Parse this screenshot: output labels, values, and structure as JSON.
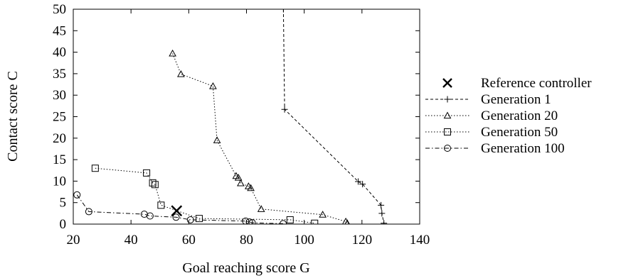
{
  "chart_data": {
    "type": "line",
    "title": "",
    "xlabel": "Goal reaching score G",
    "ylabel": "Contact score C",
    "xlim": [
      20,
      140
    ],
    "ylim": [
      0,
      50
    ],
    "xticks": [
      20,
      40,
      60,
      80,
      100,
      120,
      140
    ],
    "yticks": [
      0,
      5,
      10,
      15,
      20,
      25,
      30,
      35,
      40,
      45,
      50
    ],
    "grid": false,
    "legend_position": "right",
    "reference": {
      "name": "Reference controller",
      "marker": "x",
      "x": 55.8,
      "y": 3.1
    },
    "series": [
      {
        "name": "Generation 1",
        "marker": "plus",
        "dash": "dashed",
        "points": [
          [
            92.8,
            50.0
          ],
          [
            93.2,
            26.7
          ],
          [
            118.7,
            9.9
          ],
          [
            120.2,
            9.3
          ],
          [
            126.6,
            4.4
          ],
          [
            126.9,
            2.5
          ],
          [
            127.6,
            0.2
          ]
        ]
      },
      {
        "name": "Generation 20",
        "marker": "triangle",
        "dash": "dotted",
        "points": [
          [
            54.4,
            39.7
          ],
          [
            57.3,
            34.9
          ],
          [
            68.4,
            32.1
          ],
          [
            69.8,
            19.5
          ],
          [
            76.4,
            11.2
          ],
          [
            77.2,
            10.8
          ],
          [
            78.0,
            9.5
          ],
          [
            80.7,
            8.8
          ],
          [
            81.5,
            8.4
          ],
          [
            85.1,
            3.5
          ],
          [
            106.4,
            2.2
          ],
          [
            114.4,
            0.6
          ],
          [
            114.9,
            0.2
          ]
        ]
      },
      {
        "name": "Generation 50",
        "marker": "square",
        "dash": "dotted",
        "points": [
          [
            27.6,
            13.0
          ],
          [
            45.4,
            11.9
          ],
          [
            47.5,
            9.6
          ],
          [
            48.3,
            9.2
          ],
          [
            50.4,
            4.4
          ],
          [
            63.6,
            1.3
          ],
          [
            95.1,
            1.0
          ],
          [
            103.6,
            0.2
          ]
        ]
      },
      {
        "name": "Generation 100",
        "marker": "circle",
        "dash": "dashdot",
        "points": [
          [
            21.3,
            6.8
          ],
          [
            25.4,
            2.9
          ],
          [
            44.6,
            2.3
          ],
          [
            46.6,
            1.9
          ],
          [
            55.6,
            1.6
          ],
          [
            60.6,
            1.0
          ],
          [
            79.7,
            0.7
          ],
          [
            81.0,
            0.5
          ],
          [
            82.0,
            0.3
          ],
          [
            92.7,
            0.1
          ]
        ]
      }
    ]
  }
}
